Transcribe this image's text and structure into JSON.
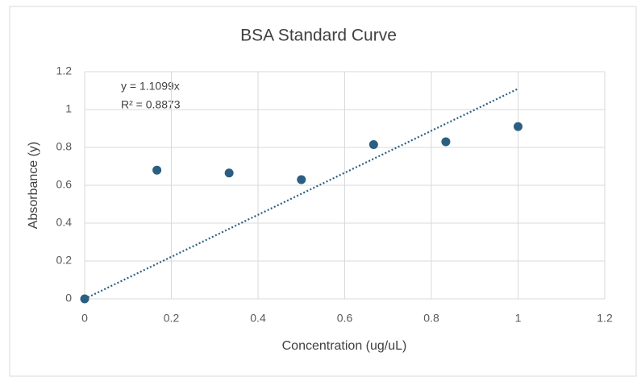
{
  "chart_data": {
    "type": "scatter",
    "title": "BSA Standard Curve",
    "x_label": "Concentration (ug/uL)",
    "y_label": "Absorbance (y)",
    "x": [
      0,
      0.1667,
      0.3333,
      0.5,
      0.6667,
      0.8333,
      1
    ],
    "series": [
      {
        "name": "Absorbance",
        "color": "#2b5f82",
        "values": [
          0,
          0.68,
          0.665,
          0.63,
          0.815,
          0.83,
          0.91
        ]
      }
    ],
    "trendline": {
      "equation": "y = 1.1099x",
      "r_squared": "R² = 0.8873",
      "slope": 1.1099,
      "xrange": [
        0,
        1
      ],
      "color": "#2b5f82"
    },
    "xlim": [
      0,
      1.2
    ],
    "xticks": [
      0,
      0.2,
      0.4,
      0.6,
      0.8,
      1,
      1.2
    ],
    "ylim": [
      0,
      1.2
    ],
    "yticks": [
      0,
      0.2,
      0.4,
      0.6,
      0.8,
      1,
      1.2
    ],
    "grid": true
  }
}
